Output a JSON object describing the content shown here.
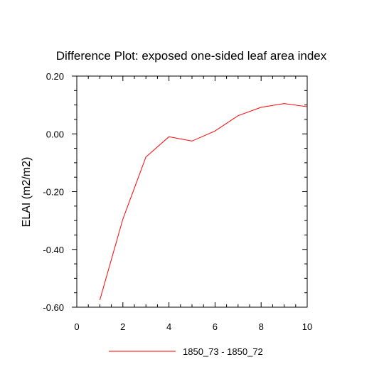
{
  "chart_data": {
    "type": "line",
    "title": "Difference Plot: exposed one-sided leaf area index",
    "xlabel": "",
    "ylabel": "ELAI  (m2/m2)",
    "xlim": [
      0,
      10
    ],
    "ylim": [
      -0.6,
      0.2
    ],
    "x_ticks": [
      0,
      2,
      4,
      6,
      8,
      10
    ],
    "x_tick_labels": [
      "0",
      "2",
      "4",
      "6",
      "8",
      "10"
    ],
    "y_ticks": [
      0.2,
      0.0,
      -0.2,
      -0.4,
      -0.6
    ],
    "y_tick_labels": [
      "0.20",
      "0.00",
      "-0.20",
      "-0.40",
      "-0.60"
    ],
    "grid": false,
    "legend_position": "bottom",
    "series": [
      {
        "name": "1850_73 - 1850_72",
        "color": "#ff0000",
        "x": [
          1,
          2,
          3,
          4,
          5,
          6,
          7,
          8,
          9,
          10
        ],
        "values": [
          -0.575,
          -0.295,
          -0.08,
          -0.01,
          -0.025,
          0.01,
          0.063,
          0.092,
          0.105,
          0.094
        ]
      }
    ]
  }
}
